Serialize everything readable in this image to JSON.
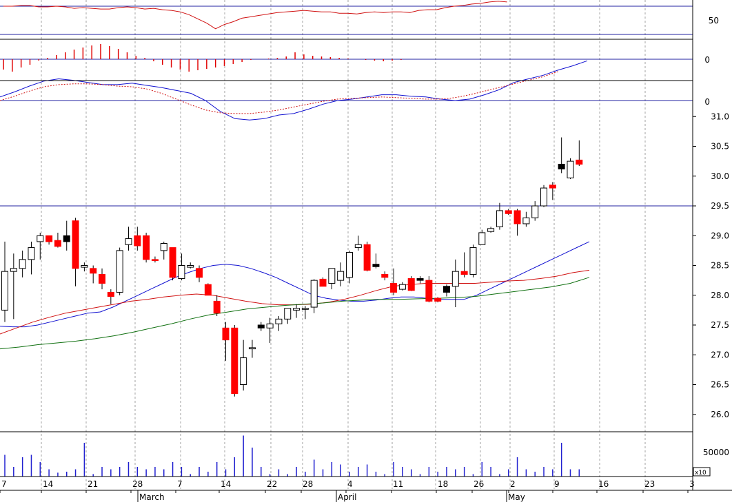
{
  "colors": {
    "up_candle": "#ffffff",
    "down_candle": "#ff0000",
    "black_candle": "#000000",
    "ma_blue": "#1010d0",
    "ma_red": "#d01010",
    "ma_green": "#107010",
    "grid": "#a0a0a0",
    "hline": "#2020a0",
    "volume": "#2020d0",
    "histogram": "#e00000"
  },
  "chart_data": [
    {
      "panel": "rsi",
      "type": "line",
      "yticks": [
        "50"
      ],
      "reference_levels": [
        70,
        30
      ],
      "ylim": [
        20,
        80
      ],
      "series": [
        {
          "color": "red",
          "values": [
            70,
            70,
            71,
            71,
            69,
            69,
            70,
            69,
            67,
            68,
            67,
            66,
            66,
            68,
            69,
            68,
            66,
            67,
            65,
            64,
            62,
            58,
            52,
            46,
            38,
            44,
            48,
            53,
            55,
            57,
            59,
            61,
            62,
            63,
            64,
            63,
            62,
            62,
            60,
            60,
            59,
            61,
            62,
            61,
            62,
            62,
            61,
            64,
            65,
            65,
            68,
            70,
            71,
            73,
            74,
            76,
            77,
            76
          ]
        }
      ]
    },
    {
      "panel": "macd_histogram",
      "type": "bar",
      "yticks": [
        "0"
      ],
      "values": [
        -0.15,
        -0.18,
        -0.12,
        -0.08,
        -0.02,
        0.02,
        0.06,
        0.1,
        0.14,
        0.17,
        0.2,
        0.22,
        0.19,
        0.15,
        0.1,
        0.05,
        0.02,
        -0.03,
        -0.08,
        -0.12,
        -0.15,
        -0.18,
        -0.16,
        -0.14,
        -0.12,
        -0.1,
        -0.07,
        -0.04,
        -0.01,
        0.0,
        0.01,
        0.02,
        0.04,
        0.1,
        0.07,
        0.05,
        0.04,
        0.03,
        0.02,
        0.01,
        0.0,
        -0.01,
        -0.02,
        -0.03,
        -0.02,
        -0.01,
        0.0
      ]
    },
    {
      "panel": "macd",
      "type": "line",
      "yticks": [
        "0"
      ],
      "series": [
        {
          "color": "blue",
          "style": "solid",
          "values": [
            0.05,
            0.12,
            0.2,
            0.27,
            0.3,
            0.28,
            0.25,
            0.22,
            0.22,
            0.24,
            0.21,
            0.18,
            0.14,
            0.1,
            0.0,
            -0.15,
            -0.25,
            -0.27,
            -0.25,
            -0.2,
            -0.18,
            -0.12,
            -0.05,
            0.0,
            0.02,
            0.05,
            0.08,
            0.08,
            0.06,
            0.05,
            0.02,
            0.0,
            0.02,
            0.08,
            0.15,
            0.25,
            0.3,
            0.35,
            0.42,
            0.48,
            0.55
          ]
        },
        {
          "color": "red",
          "style": "dotted",
          "values": [
            0.0,
            0.06,
            0.13,
            0.19,
            0.22,
            0.23,
            0.23,
            0.22,
            0.2,
            0.19,
            0.16,
            0.1,
            0.02,
            -0.06,
            -0.13,
            -0.17,
            -0.18,
            -0.18,
            -0.16,
            -0.13,
            -0.09,
            -0.05,
            -0.01,
            0.02,
            0.03,
            0.04,
            0.05,
            0.04,
            0.03,
            0.02,
            0.02,
            0.04,
            0.08,
            0.13,
            0.18,
            0.23,
            0.28,
            0.33,
            0.4
          ]
        }
      ]
    },
    {
      "panel": "price",
      "type": "candlestick",
      "yticks": [
        "31.0",
        "30.5",
        "30.0",
        "29.5",
        "29.0",
        "28.5",
        "28.0",
        "27.5",
        "27.0",
        "26.5",
        "26.0"
      ],
      "ylim": [
        25.8,
        31.2
      ],
      "reference_level": 29.5,
      "candles": [
        {
          "o": 27.75,
          "h": 28.9,
          "l": 27.55,
          "c": 28.4,
          "k": "up"
        },
        {
          "o": 28.4,
          "h": 28.7,
          "l": 27.6,
          "c": 28.45,
          "k": "up"
        },
        {
          "o": 28.45,
          "h": 28.75,
          "l": 28.3,
          "c": 28.6,
          "k": "up"
        },
        {
          "o": 28.6,
          "h": 28.9,
          "l": 28.35,
          "c": 28.8,
          "k": "up"
        },
        {
          "o": 28.9,
          "h": 29.05,
          "l": 28.6,
          "c": 29.0,
          "k": "up"
        },
        {
          "o": 29.0,
          "h": 29.0,
          "l": 28.85,
          "c": 28.9,
          "k": "down"
        },
        {
          "o": 28.92,
          "h": 29.05,
          "l": 28.8,
          "c": 28.82,
          "k": "down"
        },
        {
          "o": 28.9,
          "h": 29.25,
          "l": 28.75,
          "c": 29.0,
          "k": "black"
        },
        {
          "o": 29.25,
          "h": 29.3,
          "l": 28.15,
          "c": 28.45,
          "k": "down"
        },
        {
          "o": 28.47,
          "h": 28.55,
          "l": 28.4,
          "c": 28.5,
          "k": "up"
        },
        {
          "o": 28.45,
          "h": 28.5,
          "l": 28.2,
          "c": 28.37,
          "k": "down"
        },
        {
          "o": 28.35,
          "h": 28.45,
          "l": 28.1,
          "c": 28.2,
          "k": "down"
        },
        {
          "o": 28.05,
          "h": 28.1,
          "l": 27.85,
          "c": 27.98,
          "k": "down"
        },
        {
          "o": 28.05,
          "h": 28.8,
          "l": 28.0,
          "c": 28.75,
          "k": "up"
        },
        {
          "o": 28.85,
          "h": 29.15,
          "l": 28.75,
          "c": 28.95,
          "k": "up"
        },
        {
          "o": 29.0,
          "h": 29.15,
          "l": 28.75,
          "c": 28.83,
          "k": "down"
        },
        {
          "o": 29.0,
          "h": 29.05,
          "l": 28.55,
          "c": 28.6,
          "k": "down"
        },
        {
          "o": 28.6,
          "h": 28.65,
          "l": 28.55,
          "c": 28.58,
          "k": "down"
        },
        {
          "o": 28.75,
          "h": 28.9,
          "l": 28.6,
          "c": 28.87,
          "k": "up"
        },
        {
          "o": 28.8,
          "h": 28.8,
          "l": 28.25,
          "c": 28.3,
          "k": "down"
        },
        {
          "o": 28.28,
          "h": 28.7,
          "l": 28.25,
          "c": 28.5,
          "k": "up"
        },
        {
          "o": 28.47,
          "h": 28.55,
          "l": 28.45,
          "c": 28.5,
          "k": "up"
        },
        {
          "o": 28.45,
          "h": 28.5,
          "l": 28.22,
          "c": 28.3,
          "k": "down"
        },
        {
          "o": 28.18,
          "h": 28.2,
          "l": 28.0,
          "c": 28.0,
          "k": "down"
        },
        {
          "o": 27.9,
          "h": 28.0,
          "l": 27.65,
          "c": 27.7,
          "k": "down"
        },
        {
          "o": 27.45,
          "h": 27.55,
          "l": 26.9,
          "c": 27.25,
          "k": "down"
        },
        {
          "o": 27.45,
          "h": 27.5,
          "l": 26.3,
          "c": 26.35,
          "k": "down"
        },
        {
          "o": 26.5,
          "h": 27.25,
          "l": 26.4,
          "c": 26.95,
          "k": "up"
        },
        {
          "o": 27.1,
          "h": 27.25,
          "l": 26.95,
          "c": 27.12,
          "k": "up"
        },
        {
          "o": 27.5,
          "h": 27.55,
          "l": 27.4,
          "c": 27.45,
          "k": "black"
        },
        {
          "o": 27.45,
          "h": 27.62,
          "l": 27.2,
          "c": 27.52,
          "k": "up"
        },
        {
          "o": 27.52,
          "h": 27.65,
          "l": 27.4,
          "c": 27.6,
          "k": "up"
        },
        {
          "o": 27.6,
          "h": 27.78,
          "l": 27.52,
          "c": 27.78,
          "k": "up"
        },
        {
          "o": 27.75,
          "h": 27.85,
          "l": 27.62,
          "c": 27.78,
          "k": "up"
        },
        {
          "o": 27.78,
          "h": 27.82,
          "l": 27.6,
          "c": 27.78,
          "k": "up"
        },
        {
          "o": 27.8,
          "h": 28.27,
          "l": 27.7,
          "c": 28.25,
          "k": "up"
        },
        {
          "o": 28.27,
          "h": 28.3,
          "l": 28.15,
          "c": 28.15,
          "k": "down"
        },
        {
          "o": 28.2,
          "h": 28.45,
          "l": 28.1,
          "c": 28.45,
          "k": "up"
        },
        {
          "o": 28.25,
          "h": 28.55,
          "l": 28.15,
          "c": 28.4,
          "k": "up"
        },
        {
          "o": 28.3,
          "h": 28.75,
          "l": 28.2,
          "c": 28.72,
          "k": "up"
        },
        {
          "o": 28.8,
          "h": 29.0,
          "l": 28.75,
          "c": 28.85,
          "k": "up"
        },
        {
          "o": 28.85,
          "h": 28.9,
          "l": 28.4,
          "c": 28.42,
          "k": "down"
        },
        {
          "o": 28.52,
          "h": 28.7,
          "l": 28.45,
          "c": 28.48,
          "k": "black"
        },
        {
          "o": 28.35,
          "h": 28.4,
          "l": 28.25,
          "c": 28.3,
          "k": "down"
        },
        {
          "o": 28.2,
          "h": 28.45,
          "l": 28.0,
          "c": 28.05,
          "k": "down"
        },
        {
          "o": 28.1,
          "h": 28.22,
          "l": 28.08,
          "c": 28.18,
          "k": "up"
        },
        {
          "o": 28.28,
          "h": 28.32,
          "l": 28.07,
          "c": 28.08,
          "k": "down"
        },
        {
          "o": 28.28,
          "h": 28.32,
          "l": 28.2,
          "c": 28.25,
          "k": "black"
        },
        {
          "o": 28.25,
          "h": 28.32,
          "l": 27.88,
          "c": 27.9,
          "k": "down"
        },
        {
          "o": 27.95,
          "h": 27.97,
          "l": 27.88,
          "c": 27.9,
          "k": "down"
        },
        {
          "o": 28.05,
          "h": 28.18,
          "l": 27.98,
          "c": 28.15,
          "k": "black"
        },
        {
          "o": 28.15,
          "h": 28.6,
          "l": 27.8,
          "c": 28.4,
          "k": "up"
        },
        {
          "o": 28.4,
          "h": 28.72,
          "l": 28.3,
          "c": 28.35,
          "k": "down"
        },
        {
          "o": 28.35,
          "h": 28.85,
          "l": 28.3,
          "c": 28.8,
          "k": "up"
        },
        {
          "o": 28.85,
          "h": 29.1,
          "l": 28.85,
          "c": 29.05,
          "k": "up"
        },
        {
          "o": 29.07,
          "h": 29.15,
          "l": 29.05,
          "c": 29.12,
          "k": "up"
        },
        {
          "o": 29.15,
          "h": 29.55,
          "l": 29.1,
          "c": 29.42,
          "k": "up"
        },
        {
          "o": 29.42,
          "h": 29.45,
          "l": 29.35,
          "c": 29.37,
          "k": "down"
        },
        {
          "o": 29.42,
          "h": 29.45,
          "l": 29.0,
          "c": 29.2,
          "k": "down"
        },
        {
          "o": 29.2,
          "h": 29.4,
          "l": 29.15,
          "c": 29.3,
          "k": "up"
        },
        {
          "o": 29.3,
          "h": 29.58,
          "l": 29.25,
          "c": 29.5,
          "k": "up"
        },
        {
          "o": 29.5,
          "h": 29.85,
          "l": 29.48,
          "c": 29.8,
          "k": "up"
        },
        {
          "o": 29.85,
          "h": 29.9,
          "l": 29.6,
          "c": 29.8,
          "k": "down"
        },
        {
          "o": 30.2,
          "h": 30.65,
          "l": 30.05,
          "c": 30.12,
          "k": "black"
        },
        {
          "o": 29.97,
          "h": 30.3,
          "l": 29.95,
          "c": 30.25,
          "k": "up"
        },
        {
          "o": 30.27,
          "h": 30.6,
          "l": 30.17,
          "c": 30.2,
          "k": "down"
        }
      ],
      "moving_averages": [
        {
          "color": "blue",
          "values": [
            27.48,
            27.47,
            27.47,
            27.5,
            27.55,
            27.6,
            27.65,
            27.7,
            27.72,
            27.8,
            27.9,
            28.0,
            28.1,
            28.2,
            28.3,
            28.38,
            28.45,
            28.5,
            28.52,
            28.5,
            28.45,
            28.38,
            28.3,
            28.2,
            28.1,
            28.0,
            27.95,
            27.92,
            27.9,
            27.9,
            27.92,
            27.95,
            27.97,
            27.97,
            27.95,
            27.93,
            27.93,
            27.93,
            28.0,
            28.1,
            28.2,
            28.3,
            28.4,
            28.5,
            28.6,
            28.7,
            28.8,
            28.9
          ]
        },
        {
          "color": "red",
          "values": [
            27.35,
            27.45,
            27.55,
            27.63,
            27.7,
            27.75,
            27.8,
            27.85,
            27.9,
            27.93,
            27.97,
            28.0,
            28.02,
            28.0,
            27.95,
            27.9,
            27.86,
            27.84,
            27.84,
            27.85,
            27.88,
            27.93,
            28.0,
            28.08,
            28.15,
            28.18,
            28.2,
            28.2,
            28.2,
            28.2,
            28.22,
            28.24,
            28.25,
            28.28,
            28.32,
            28.38,
            28.42
          ]
        },
        {
          "color": "green",
          "values": [
            27.1,
            27.13,
            27.17,
            27.2,
            27.23,
            27.27,
            27.32,
            27.38,
            27.45,
            27.52,
            27.6,
            27.67,
            27.72,
            27.77,
            27.8,
            27.83,
            27.85,
            27.87,
            27.9,
            27.92,
            27.93,
            27.93,
            27.94,
            27.95,
            27.96,
            27.98,
            28.02,
            28.06,
            28.1,
            28.14,
            28.2,
            28.3
          ]
        }
      ]
    },
    {
      "panel": "volume",
      "type": "bar",
      "yticks": [
        "50000"
      ],
      "unit_label": "x10",
      "values": [
        0.45,
        0.2,
        0.4,
        0.45,
        0.3,
        0.15,
        0.08,
        0.1,
        0.15,
        0.7,
        0.05,
        0.2,
        0.15,
        0.2,
        0.3,
        0.2,
        0.15,
        0.2,
        0.15,
        0.3,
        0.2,
        0.05,
        0.2,
        0.1,
        0.3,
        0.15,
        0.4,
        0.85,
        0.6,
        0.2,
        0.05,
        0.15,
        0.05,
        0.2,
        0.1,
        0.35,
        0.15,
        0.3,
        0.25,
        0.1,
        0.2,
        0.25,
        0.1,
        0.05,
        0.3,
        0.2,
        0.15,
        0.05,
        0.2,
        0.1,
        0.2,
        0.15,
        0.2,
        0.05,
        0.3,
        0.2,
        0.05,
        0.15,
        0.4,
        0.15,
        0.1,
        0.2,
        0.15,
        0.7,
        0.15,
        0.15
      ]
    }
  ],
  "x_axis": {
    "day_labels": [
      "7",
      "14",
      "21",
      "28",
      "7",
      "14",
      "22",
      "28",
      "4",
      "11",
      "18",
      "26",
      "2",
      "9",
      "16",
      "23",
      "3"
    ],
    "month_labels": [
      "March",
      "April",
      "May"
    ]
  }
}
